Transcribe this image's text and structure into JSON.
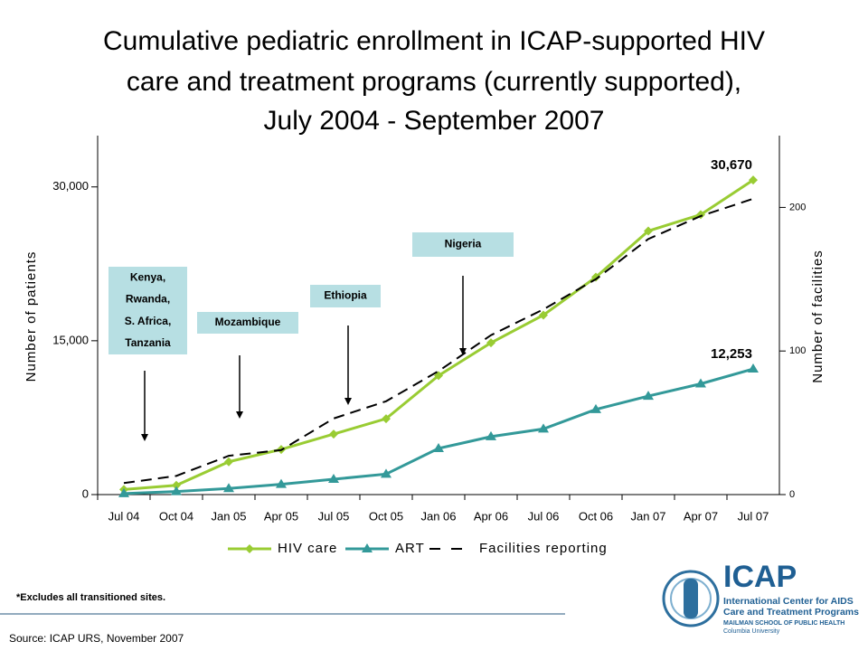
{
  "chart_data": {
    "type": "line",
    "title_lines": [
      "Cumulative pediatric enrollment in ICAP-supported HIV",
      "care and treatment programs (currently supported),",
      "July 2004 - September 2007"
    ],
    "categories": [
      "Jul 04",
      "Oct 04",
      "Jan 05",
      "Apr 05",
      "Jul 05",
      "Oct 05",
      "Jan 06",
      "Apr 06",
      "Jul 06",
      "Oct 06",
      "Jan 07",
      "Apr 07",
      "Jul 07"
    ],
    "series": [
      {
        "name": "HIV care",
        "color": "#99cc33",
        "marker": "diamond",
        "values": [
          500,
          900,
          3200,
          4400,
          5900,
          7400,
          11600,
          14800,
          17500,
          21200,
          25700,
          27300,
          30670
        ],
        "value_labels": [
          null,
          null,
          null,
          null,
          null,
          null,
          null,
          null,
          null,
          null,
          null,
          null,
          "30,670"
        ]
      },
      {
        "name": "ART",
        "color": "#339999",
        "marker": "triangle",
        "values": [
          100,
          300,
          600,
          1000,
          1500,
          2000,
          4500,
          5650,
          6400,
          8300,
          9600,
          10800,
          12253
        ],
        "value_labels": [
          null,
          null,
          null,
          null,
          null,
          null,
          null,
          null,
          null,
          null,
          null,
          null,
          "12,253"
        ]
      },
      {
        "name": "Facilities reporting",
        "color": "#000000",
        "dash": true,
        "axis": "y2",
        "values": [
          8,
          13,
          27,
          31,
          53,
          65,
          86,
          111,
          129,
          150,
          178,
          194,
          206
        ]
      }
    ],
    "ylabel": "Number of patients",
    "y2label": "Number of facilities",
    "ylim": [
      0,
      35000
    ],
    "yticks": [
      0,
      {
        "value": 15000,
        "label": "15,000"
      },
      {
        "value": 30000,
        "label": "30,000"
      }
    ],
    "y2lim": [
      0,
      250
    ],
    "y2ticks": [
      0,
      100,
      200
    ],
    "legend": "bottom",
    "annotations": [
      {
        "lines": [
          "Kenya,",
          "Rwanda,",
          "S. Africa,",
          "Tanzania"
        ],
        "category": 0
      },
      {
        "lines": [
          "Mozambique"
        ],
        "category": 2
      },
      {
        "lines": [
          "Ethiopia"
        ],
        "category": 4
      },
      {
        "lines": [
          "Nigeria"
        ],
        "category": 6
      }
    ],
    "footnote": "*Excludes all transitioned sites.",
    "source": "Source: ICAP URS, November 2007"
  },
  "logo": {
    "name": "ICAP",
    "lines": [
      "International Center for AIDS",
      "Care and Treatment Programs"
    ],
    "school": "MAILMAN SCHOOL OF PUBLIC HEALTH",
    "university": "Columbia University"
  }
}
